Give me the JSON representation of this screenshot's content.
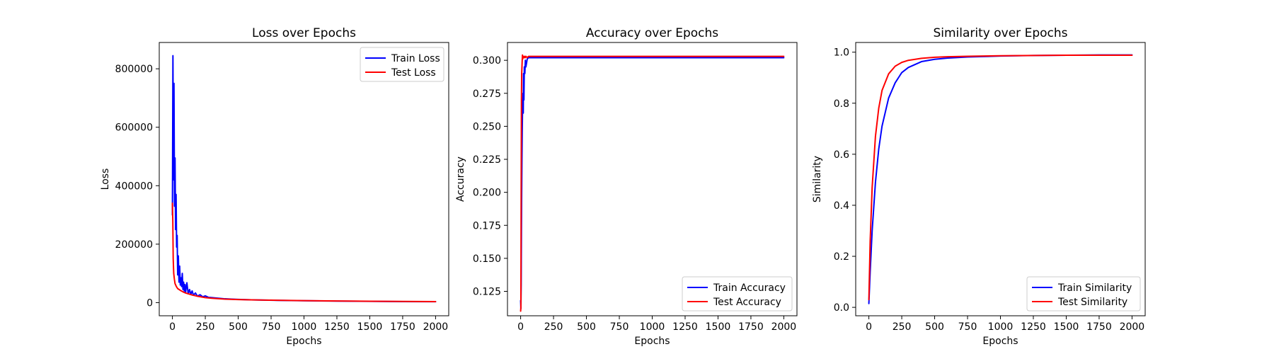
{
  "colors": {
    "train": "#0000ff",
    "test": "#ff0000"
  },
  "chart_data": [
    {
      "type": "line",
      "title": "Loss over Epochs",
      "xlabel": "Epochs",
      "ylabel": "Loss",
      "xlim": [
        -100,
        2100
      ],
      "ylim": [
        -45000,
        890000
      ],
      "xticks": [
        0,
        250,
        500,
        750,
        1000,
        1250,
        1500,
        1750,
        2000
      ],
      "yticks": [
        0,
        200000,
        400000,
        600000,
        800000
      ],
      "legend": "top-right",
      "grid": false,
      "series": [
        {
          "name": "Train Loss",
          "color": "#0000ff",
          "x": [
            0,
            4,
            8,
            12,
            16,
            20,
            24,
            28,
            32,
            36,
            40,
            45,
            50,
            55,
            60,
            65,
            70,
            75,
            80,
            85,
            90,
            95,
            100,
            110,
            120,
            130,
            140,
            150,
            160,
            175,
            190,
            210,
            230,
            250,
            275,
            300,
            350,
            400,
            450,
            500,
            600,
            700,
            800,
            1000,
            1250,
            1500,
            1750,
            2000
          ],
          "y": [
            300000,
            845000,
            420000,
            750000,
            330000,
            495000,
            250000,
            370000,
            190000,
            230000,
            95000,
            160000,
            70000,
            125000,
            60000,
            85000,
            55000,
            100000,
            45000,
            70000,
            40000,
            62000,
            35000,
            68000,
            30000,
            45000,
            28000,
            40000,
            25000,
            33000,
            22000,
            27000,
            20000,
            23000,
            18000,
            17000,
            15000,
            13000,
            12000,
            11000,
            9500,
            8500,
            7800,
            6500,
            5200,
            4300,
            3500,
            3000
          ]
        },
        {
          "name": "Test Loss",
          "color": "#ff0000",
          "x": [
            0,
            3,
            6,
            10,
            15,
            20,
            30,
            40,
            60,
            80,
            100,
            150,
            200,
            250,
            300,
            400,
            500,
            600,
            800,
            1000,
            1250,
            1500,
            1750,
            2000
          ],
          "y": [
            340000,
            280000,
            150000,
            100000,
            80000,
            65000,
            55000,
            48000,
            42000,
            37000,
            33000,
            26000,
            21000,
            17000,
            15000,
            12000,
            10500,
            9500,
            8000,
            6800,
            5600,
            4700,
            4000,
            3500
          ]
        }
      ]
    },
    {
      "type": "line",
      "title": "Accuracy over Epochs",
      "xlabel": "Epochs",
      "ylabel": "Accuracy",
      "xlim": [
        -100,
        2100
      ],
      "ylim": [
        0.1065,
        0.3135
      ],
      "xticks": [
        0,
        250,
        500,
        750,
        1000,
        1250,
        1500,
        1750,
        2000
      ],
      "yticks": [
        0.125,
        0.15,
        0.175,
        0.2,
        0.225,
        0.25,
        0.275,
        0.3
      ],
      "ytick_labels": [
        "0.125",
        "0.150",
        "0.175",
        "0.200",
        "0.225",
        "0.250",
        "0.275",
        "0.300"
      ],
      "legend": "bottom-right",
      "grid": false,
      "series": [
        {
          "name": "Train Accuracy",
          "color": "#0000ff",
          "x": [
            0,
            2,
            4,
            6,
            8,
            10,
            12,
            14,
            16,
            18,
            20,
            22,
            25,
            28,
            32,
            36,
            40,
            50,
            60,
            80,
            100,
            200,
            500,
            1000,
            1500,
            2000
          ],
          "y": [
            0.118,
            0.112,
            0.13,
            0.17,
            0.2,
            0.225,
            0.245,
            0.26,
            0.27,
            0.275,
            0.26,
            0.29,
            0.27,
            0.295,
            0.29,
            0.3,
            0.295,
            0.301,
            0.302,
            0.302,
            0.302,
            0.302,
            0.302,
            0.302,
            0.302,
            0.302
          ]
        },
        {
          "name": "Test Accuracy",
          "color": "#ff0000",
          "x": [
            0,
            2,
            4,
            6,
            8,
            10,
            12,
            14,
            16,
            18,
            20,
            22,
            26,
            30,
            35,
            40,
            50,
            60,
            100,
            200,
            500,
            1000,
            1500,
            2000
          ],
          "y": [
            0.11,
            0.113,
            0.2,
            0.27,
            0.29,
            0.295,
            0.3,
            0.304,
            0.301,
            0.303,
            0.302,
            0.303,
            0.302,
            0.303,
            0.302,
            0.303,
            0.302,
            0.303,
            0.303,
            0.303,
            0.303,
            0.303,
            0.303,
            0.303
          ]
        }
      ]
    },
    {
      "type": "line",
      "title": "Similarity over Epochs",
      "xlabel": "Epochs",
      "ylabel": "Similarity",
      "xlim": [
        -100,
        2100
      ],
      "ylim": [
        -0.033,
        1.038
      ],
      "xticks": [
        0,
        250,
        500,
        750,
        1000,
        1250,
        1500,
        1750,
        2000
      ],
      "yticks": [
        0.0,
        0.2,
        0.4,
        0.6,
        0.8,
        1.0
      ],
      "ytick_labels": [
        "0.0",
        "0.2",
        "0.4",
        "0.6",
        "0.8",
        "1.0"
      ],
      "legend": "bottom-right",
      "grid": false,
      "series": [
        {
          "name": "Train Similarity",
          "color": "#0000ff",
          "x": [
            0,
            10,
            25,
            50,
            75,
            100,
            150,
            200,
            250,
            300,
            400,
            500,
            600,
            750,
            1000,
            1250,
            1500,
            1750,
            2000
          ],
          "y": [
            0.015,
            0.14,
            0.3,
            0.49,
            0.62,
            0.71,
            0.82,
            0.88,
            0.92,
            0.94,
            0.963,
            0.972,
            0.977,
            0.981,
            0.985,
            0.987,
            0.988,
            0.989,
            0.989
          ]
        },
        {
          "name": "Test Similarity",
          "color": "#ff0000",
          "x": [
            0,
            10,
            25,
            50,
            75,
            100,
            150,
            200,
            250,
            300,
            400,
            500,
            600,
            750,
            1000,
            1250,
            1500,
            1750,
            2000
          ],
          "y": [
            0.03,
            0.26,
            0.47,
            0.67,
            0.78,
            0.85,
            0.915,
            0.945,
            0.96,
            0.968,
            0.976,
            0.98,
            0.982,
            0.984,
            0.986,
            0.987,
            0.988,
            0.988,
            0.988
          ]
        }
      ]
    }
  ]
}
